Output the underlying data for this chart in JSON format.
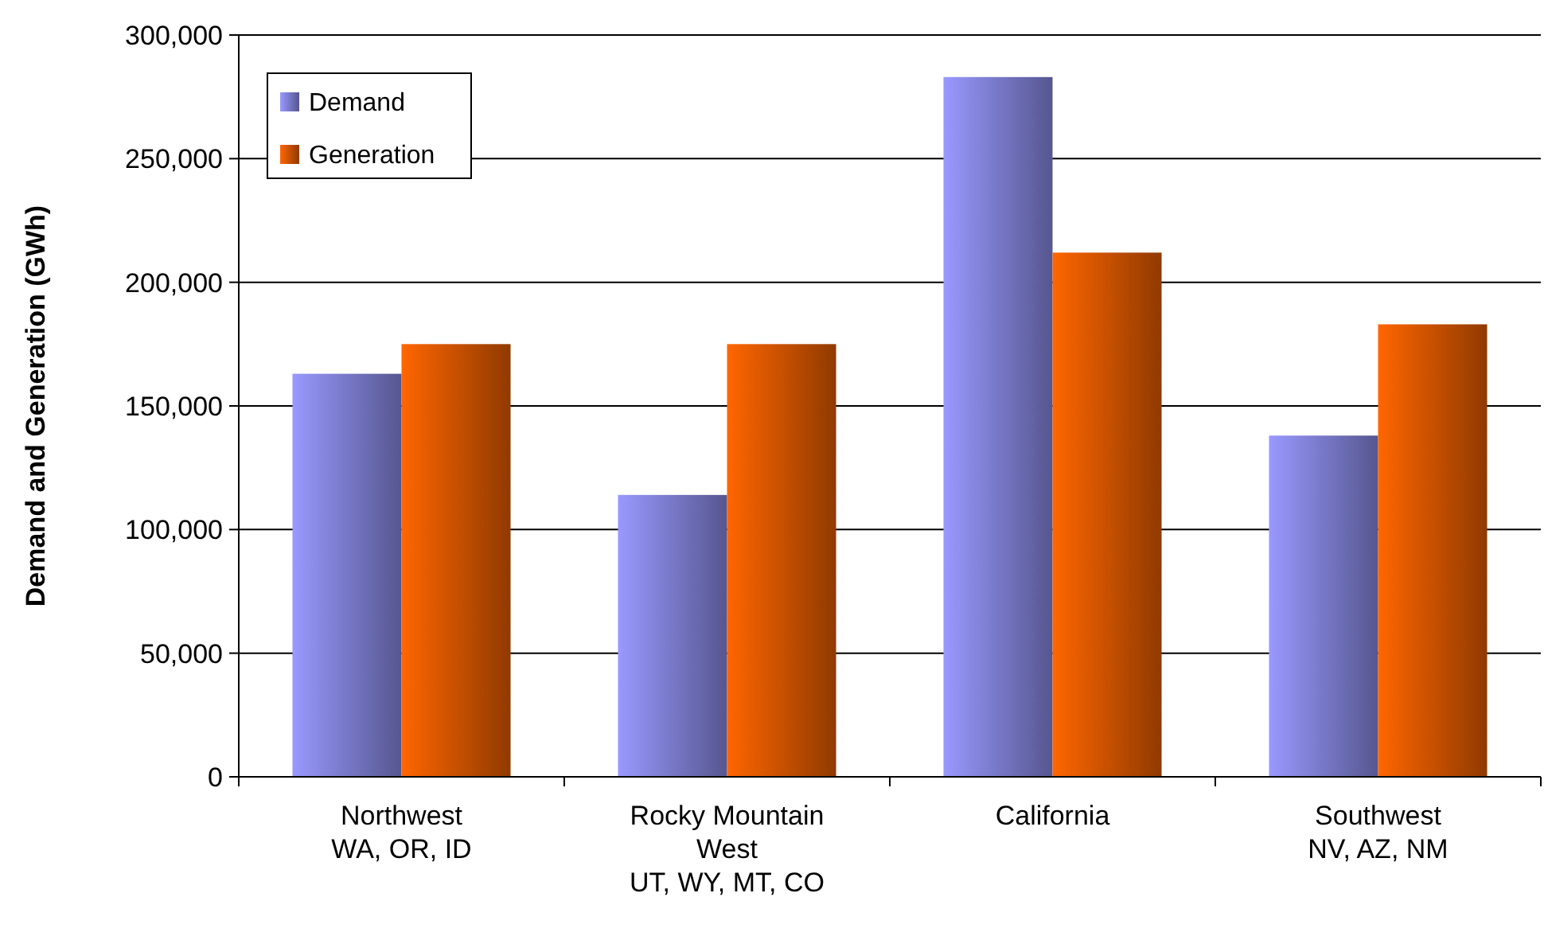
{
  "chart_data": {
    "type": "bar",
    "ylabel": "Demand and Generation (GWh)",
    "categories": [
      "Northwest\nWA, OR, ID",
      "Rocky Mountain\nWest\nUT, WY, MT, CO",
      "California",
      "Southwest\nNV, AZ, NM"
    ],
    "series": [
      {
        "name": "Demand",
        "color": "#9999ff",
        "values": [
          163000,
          114000,
          283000,
          138000
        ]
      },
      {
        "name": "Generation",
        "color": "#ff6600",
        "values": [
          175000,
          175000,
          212000,
          183000
        ]
      }
    ],
    "ylim": [
      0,
      300000
    ],
    "yticks": [
      {
        "value": 0,
        "label": "0"
      },
      {
        "value": 50000,
        "label": "50,000"
      },
      {
        "value": 100000,
        "label": "100,000"
      },
      {
        "value": 150000,
        "label": "150,000"
      },
      {
        "value": 200000,
        "label": "200,000"
      },
      {
        "value": 250000,
        "label": "250,000"
      },
      {
        "value": 300000,
        "label": "300,000"
      }
    ],
    "grid": "y",
    "legend": "top left"
  }
}
